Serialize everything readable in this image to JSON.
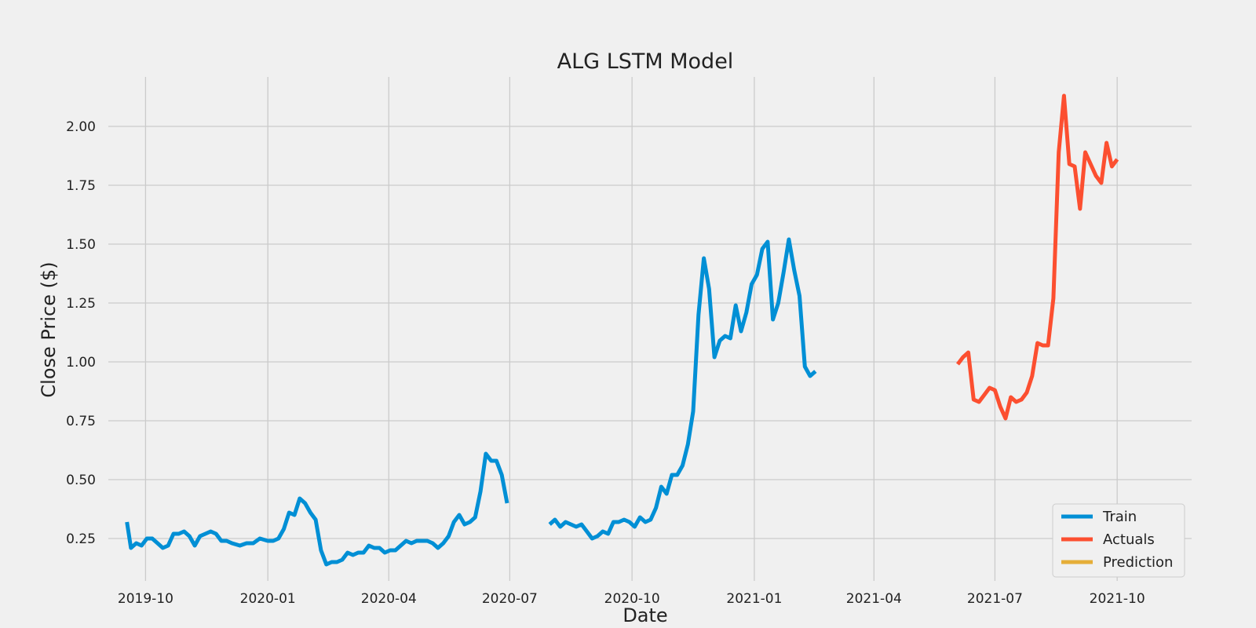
{
  "chart_data": {
    "type": "line",
    "title": "ALG LSTM Model",
    "xlabel": "Date",
    "ylabel": "Close Price ($)",
    "xlim": [
      "2019-09-03",
      "2021-11-26"
    ],
    "ylim": [
      0.07,
      2.21
    ],
    "x_ticks": [
      "2019-10",
      "2020-01",
      "2020-04",
      "2020-07",
      "2020-10",
      "2021-01",
      "2021-04",
      "2021-07",
      "2021-10"
    ],
    "y_ticks": [
      "0.25",
      "0.50",
      "0.75",
      "1.00",
      "1.25",
      "1.50",
      "1.75",
      "2.00"
    ],
    "grid": true,
    "legend_position": "lower-right",
    "series": [
      {
        "name": "Train",
        "color": "#008fd5",
        "segments": [
          [
            [
              "2019-09-17",
              0.32
            ],
            [
              "2019-09-20",
              0.21
            ],
            [
              "2019-09-24",
              0.23
            ],
            [
              "2019-09-28",
              0.22
            ],
            [
              "2019-10-02",
              0.25
            ],
            [
              "2019-10-06",
              0.25
            ],
            [
              "2019-10-10",
              0.23
            ],
            [
              "2019-10-14",
              0.21
            ],
            [
              "2019-10-18",
              0.22
            ],
            [
              "2019-10-22",
              0.27
            ],
            [
              "2019-10-26",
              0.27
            ],
            [
              "2019-10-30",
              0.28
            ],
            [
              "2019-11-03",
              0.26
            ],
            [
              "2019-11-07",
              0.22
            ],
            [
              "2019-11-11",
              0.26
            ],
            [
              "2019-11-15",
              0.27
            ],
            [
              "2019-11-19",
              0.28
            ],
            [
              "2019-11-23",
              0.27
            ],
            [
              "2019-11-27",
              0.24
            ],
            [
              "2019-12-01",
              0.24
            ],
            [
              "2019-12-05",
              0.23
            ],
            [
              "2019-12-11",
              0.22
            ],
            [
              "2019-12-16",
              0.23
            ],
            [
              "2019-12-21",
              0.23
            ],
            [
              "2019-12-26",
              0.25
            ],
            [
              "2020-01-01",
              0.24
            ],
            [
              "2020-01-05",
              0.24
            ],
            [
              "2020-01-09",
              0.25
            ],
            [
              "2020-01-13",
              0.29
            ],
            [
              "2020-01-17",
              0.36
            ],
            [
              "2020-01-21",
              0.35
            ],
            [
              "2020-01-25",
              0.42
            ],
            [
              "2020-01-29",
              0.4
            ],
            [
              "2020-02-02",
              0.36
            ],
            [
              "2020-02-06",
              0.33
            ],
            [
              "2020-02-10",
              0.2
            ],
            [
              "2020-02-14",
              0.14
            ],
            [
              "2020-02-18",
              0.15
            ],
            [
              "2020-02-22",
              0.15
            ],
            [
              "2020-02-26",
              0.16
            ],
            [
              "2020-03-01",
              0.19
            ],
            [
              "2020-03-05",
              0.18
            ],
            [
              "2020-03-09",
              0.19
            ],
            [
              "2020-03-13",
              0.19
            ],
            [
              "2020-03-17",
              0.22
            ],
            [
              "2020-03-21",
              0.21
            ],
            [
              "2020-03-25",
              0.21
            ],
            [
              "2020-03-29",
              0.19
            ],
            [
              "2020-04-02",
              0.2
            ],
            [
              "2020-04-06",
              0.2
            ],
            [
              "2020-04-10",
              0.22
            ],
            [
              "2020-04-14",
              0.24
            ],
            [
              "2020-04-18",
              0.23
            ],
            [
              "2020-04-22",
              0.24
            ],
            [
              "2020-04-26",
              0.24
            ],
            [
              "2020-04-30",
              0.24
            ],
            [
              "2020-05-04",
              0.23
            ],
            [
              "2020-05-08",
              0.21
            ],
            [
              "2020-05-12",
              0.23
            ],
            [
              "2020-05-16",
              0.26
            ],
            [
              "2020-05-20",
              0.32
            ],
            [
              "2020-05-24",
              0.35
            ],
            [
              "2020-05-28",
              0.31
            ],
            [
              "2020-06-01",
              0.32
            ],
            [
              "2020-06-05",
              0.34
            ],
            [
              "2020-06-09",
              0.45
            ],
            [
              "2020-06-13",
              0.61
            ],
            [
              "2020-06-17",
              0.58
            ],
            [
              "2020-06-21",
              0.58
            ],
            [
              "2020-06-25",
              0.52
            ],
            [
              "2020-06-29",
              0.4
            ]
          ],
          [
            [
              "2020-07-31",
              0.31
            ],
            [
              "2020-08-04",
              0.33
            ],
            [
              "2020-08-08",
              0.3
            ],
            [
              "2020-08-12",
              0.32
            ],
            [
              "2020-08-16",
              0.31
            ],
            [
              "2020-08-20",
              0.3
            ],
            [
              "2020-08-24",
              0.31
            ],
            [
              "2020-08-28",
              0.28
            ],
            [
              "2020-09-01",
              0.25
            ],
            [
              "2020-09-05",
              0.26
            ],
            [
              "2020-09-09",
              0.28
            ],
            [
              "2020-09-13",
              0.27
            ],
            [
              "2020-09-17",
              0.32
            ],
            [
              "2020-09-21",
              0.32
            ],
            [
              "2020-09-25",
              0.33
            ],
            [
              "2020-09-29",
              0.32
            ],
            [
              "2020-10-03",
              0.3
            ],
            [
              "2020-10-07",
              0.34
            ],
            [
              "2020-10-11",
              0.32
            ],
            [
              "2020-10-15",
              0.33
            ],
            [
              "2020-10-19",
              0.38
            ],
            [
              "2020-10-23",
              0.47
            ],
            [
              "2020-10-27",
              0.44
            ],
            [
              "2020-10-31",
              0.52
            ],
            [
              "2020-11-04",
              0.52
            ],
            [
              "2020-11-08",
              0.56
            ],
            [
              "2020-11-12",
              0.65
            ],
            [
              "2020-11-16",
              0.79
            ],
            [
              "2020-11-20",
              1.2
            ],
            [
              "2020-11-24",
              1.44
            ],
            [
              "2020-11-28",
              1.31
            ],
            [
              "2020-12-02",
              1.02
            ],
            [
              "2020-12-06",
              1.09
            ],
            [
              "2020-12-10",
              1.11
            ],
            [
              "2020-12-14",
              1.1
            ],
            [
              "2020-12-18",
              1.24
            ],
            [
              "2020-12-22",
              1.13
            ],
            [
              "2020-12-26",
              1.21
            ],
            [
              "2020-12-30",
              1.33
            ],
            [
              "2021-01-03",
              1.37
            ],
            [
              "2021-01-07",
              1.48
            ],
            [
              "2021-01-11",
              1.51
            ],
            [
              "2021-01-15",
              1.18
            ],
            [
              "2021-01-19",
              1.25
            ],
            [
              "2021-01-23",
              1.38
            ],
            [
              "2021-01-27",
              1.52
            ],
            [
              "2021-01-31",
              1.39
            ],
            [
              "2021-02-04",
              1.28
            ],
            [
              "2021-02-08",
              0.98
            ],
            [
              "2021-02-12",
              0.94
            ],
            [
              "2021-02-16",
              0.96
            ]
          ]
        ]
      },
      {
        "name": "Actuals",
        "color": "#fc4f30",
        "segments": [
          [
            [
              "2021-06-03",
              0.99
            ],
            [
              "2021-06-07",
              1.02
            ],
            [
              "2021-06-11",
              1.04
            ],
            [
              "2021-06-15",
              0.84
            ],
            [
              "2021-06-19",
              0.83
            ],
            [
              "2021-06-23",
              0.86
            ],
            [
              "2021-06-27",
              0.89
            ],
            [
              "2021-07-01",
              0.88
            ],
            [
              "2021-07-05",
              0.81
            ],
            [
              "2021-07-09",
              0.76
            ],
            [
              "2021-07-13",
              0.85
            ],
            [
              "2021-07-17",
              0.83
            ],
            [
              "2021-07-21",
              0.84
            ],
            [
              "2021-07-25",
              0.87
            ],
            [
              "2021-07-29",
              0.94
            ],
            [
              "2021-08-02",
              1.08
            ],
            [
              "2021-08-06",
              1.07
            ],
            [
              "2021-08-10",
              1.07
            ],
            [
              "2021-08-14",
              1.27
            ],
            [
              "2021-08-18",
              1.89
            ],
            [
              "2021-08-22",
              2.13
            ],
            [
              "2021-08-26",
              1.84
            ],
            [
              "2021-08-30",
              1.83
            ],
            [
              "2021-09-03",
              1.65
            ],
            [
              "2021-09-07",
              1.89
            ],
            [
              "2021-09-11",
              1.84
            ],
            [
              "2021-09-15",
              1.79
            ],
            [
              "2021-09-19",
              1.76
            ],
            [
              "2021-09-23",
              1.93
            ],
            [
              "2021-09-27",
              1.83
            ],
            [
              "2021-10-01",
              1.86
            ]
          ]
        ]
      },
      {
        "name": "Prediction",
        "color": "#e5ae38",
        "segments": []
      }
    ]
  }
}
